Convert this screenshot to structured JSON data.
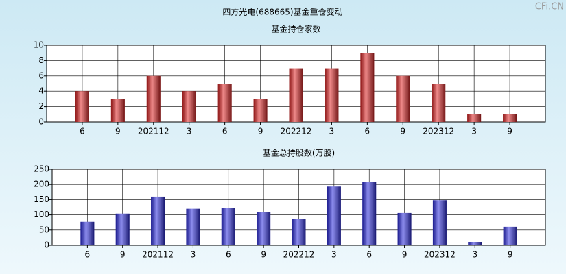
{
  "title": "四方光电(688665)基金重仓变动",
  "watermark": "CFi.CN",
  "chart_data": [
    {
      "type": "bar",
      "title": "基金持仓家数",
      "categories": [
        "6",
        "9",
        "202112",
        "3",
        "6",
        "9",
        "202212",
        "3",
        "6",
        "9",
        "202312",
        "3",
        "9"
      ],
      "values": [
        4,
        3,
        6,
        4,
        5,
        3,
        7,
        7,
        9,
        6,
        5,
        1,
        1
      ],
      "color": "#e02828",
      "ylim": [
        0,
        10
      ],
      "yticks": [
        0,
        2,
        4,
        6,
        8,
        10
      ],
      "grid": true
    },
    {
      "type": "bar",
      "title": "基金总持股数(万股)",
      "categories": [
        "6",
        "9",
        "202112",
        "3",
        "6",
        "9",
        "202212",
        "3",
        "6",
        "9",
        "202312",
        "3",
        "9"
      ],
      "values": [
        77,
        104,
        160,
        120,
        122,
        110,
        86,
        193,
        209,
        106,
        148,
        9,
        61
      ],
      "color": "#3030e0",
      "ylim": [
        0,
        250
      ],
      "yticks": [
        0,
        50,
        100,
        150,
        200,
        250
      ],
      "grid": true
    }
  ]
}
